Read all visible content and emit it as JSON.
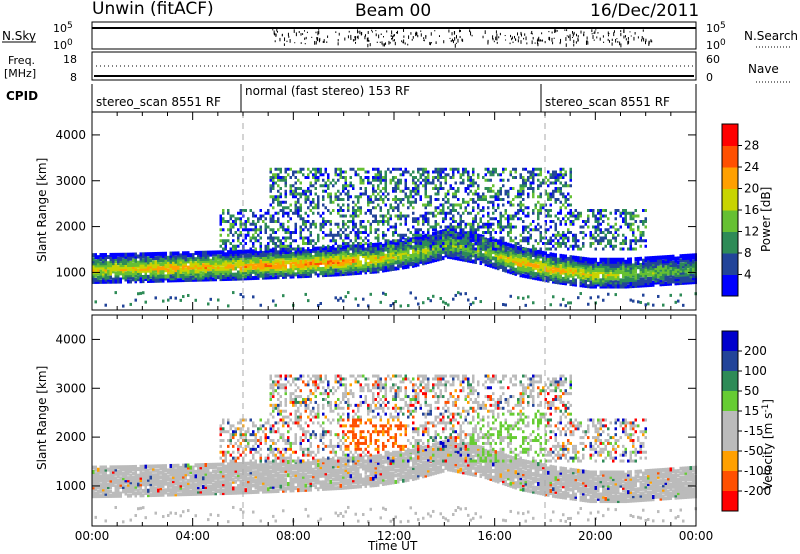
{
  "header": {
    "title_left": "Unwin (fitACF)",
    "title_center": "Beam 00",
    "title_right": "16/Dec/2011"
  },
  "panels": {
    "nsky": {
      "label": "N.Sky",
      "right_label": "N.Search",
      "left_ticks": [
        "10^5",
        "10^0"
      ],
      "right_ticks": [
        "10^5",
        "10^0"
      ]
    },
    "freq": {
      "label_line1": "Freq.",
      "label_line2": "[MHz]",
      "right_label": "Nave",
      "left_ticks": [
        "18",
        "8"
      ],
      "right_ticks": [
        "60",
        "0"
      ]
    },
    "cpid": {
      "label": "CPID",
      "segments": [
        "stereo_scan 8551 RF",
        "normal (fast stereo) 153 RF",
        "stereo_scan 8551 RF"
      ]
    }
  },
  "colors": {
    "power": [
      "#0000ff",
      "#224499",
      "#2e8b57",
      "#66c033",
      "#c8d400",
      "#ffa000",
      "#ff5000",
      "#ff0000"
    ],
    "velocity": [
      "#ff0000",
      "#ff5000",
      "#ffa000",
      "#bbbbbb",
      "#bbbbbb",
      "#66cc33",
      "#2e8b57",
      "#224499",
      "#0000cc"
    ]
  },
  "chart_data": [
    {
      "type": "heatmap",
      "name": "power",
      "ylabel": "Slant Range [km]",
      "ylim": [
        180,
        4500
      ],
      "yticks": [
        "1000",
        "2000",
        "3000",
        "4000"
      ],
      "xticks": [
        "00:00",
        "04:00",
        "08:00",
        "12:00",
        "16:00",
        "20:00",
        "00:00"
      ],
      "colorbar_label": "Power [dB]",
      "colorbar_ticks": [
        "4",
        "8",
        "12",
        "16",
        "20",
        "24",
        "28"
      ],
      "band_center_km": [
        1050,
        1060,
        1080,
        1100,
        1120,
        1150,
        1180,
        1220,
        1280,
        1400,
        1600,
        1450,
        1200,
        1050,
        950,
        950,
        1000,
        1050
      ],
      "band_value_db": [
        20,
        20,
        22,
        22,
        22,
        24,
        24,
        24,
        20,
        18,
        16,
        14,
        22,
        22,
        20,
        16,
        14,
        12
      ]
    },
    {
      "type": "heatmap",
      "name": "velocity",
      "ylabel": "Slant Range [km]",
      "ylim": [
        180,
        4500
      ],
      "yticks": [
        "1000",
        "2000",
        "3000",
        "4000"
      ],
      "xticks": [
        "00:00",
        "04:00",
        "08:00",
        "12:00",
        "16:00",
        "20:00",
        "00:00"
      ],
      "xlabel": "Time UT",
      "colorbar_label": "Velocity [m s^-1]",
      "colorbar_ticks": [
        "200",
        "100",
        "50",
        "15",
        "-15",
        "-50",
        "-100",
        "-200"
      ]
    }
  ]
}
